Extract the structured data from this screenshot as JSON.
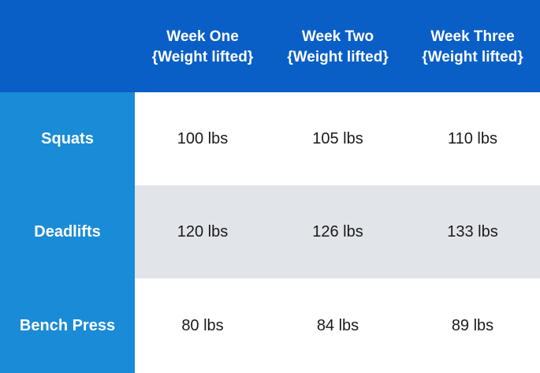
{
  "chart_data": {
    "type": "table",
    "columns": [
      {
        "line1": "Week One",
        "line2": "{Weight lifted}"
      },
      {
        "line1": "Week Two",
        "line2": "{Weight lifted}"
      },
      {
        "line1": "Week Three",
        "line2": "{Weight lifted}"
      }
    ],
    "rows": [
      {
        "label": "Squats",
        "cells": [
          "100 lbs",
          "105 lbs",
          "110 lbs"
        ]
      },
      {
        "label": "Deadlifts",
        "cells": [
          "120 lbs",
          "126 lbs",
          "133 lbs"
        ]
      },
      {
        "label": "Bench Press",
        "cells": [
          "80 lbs",
          "84 lbs",
          "89 lbs"
        ]
      }
    ],
    "unit": "lbs"
  },
  "colors": {
    "header_bg": "#0a5fc7",
    "row_header_bg": "#1a8bd6",
    "stripe_bg": "#e1e4e8",
    "text_dark": "#1a1a1a",
    "text_light": "#ffffff"
  }
}
